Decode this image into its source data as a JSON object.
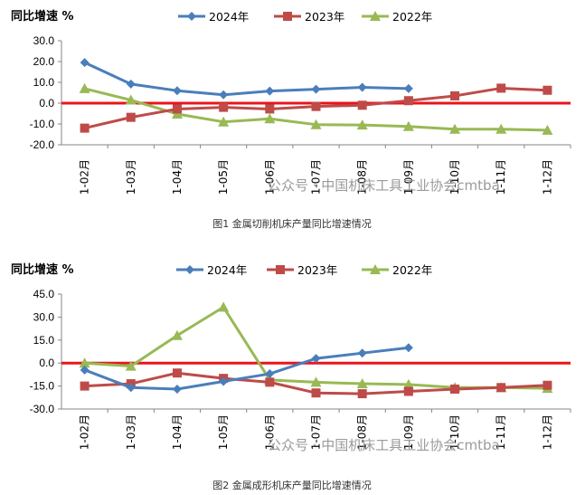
{
  "chart_data": [
    {
      "type": "line",
      "ylabel": "同比增速 %",
      "caption": "图1 金属切削机床产量同比增速情况",
      "categories": [
        "1-02月",
        "1-03月",
        "1-04月",
        "1-05月",
        "1-06月",
        "1-07月",
        "1-08月",
        "1-09月",
        "1-10月",
        "1-11月",
        "1-12月"
      ],
      "yticks": [
        "30.0",
        "20.0",
        "10.0",
        "0.0",
        "-10.0",
        "-20.0"
      ],
      "ylim": [
        -20,
        30
      ],
      "reference_line_y": 0,
      "legend_position": "top",
      "series": [
        {
          "name": "2024年",
          "color": "#4a7ebb",
          "marker": "diamond",
          "values": [
            19.5,
            9.2,
            6.0,
            4.0,
            5.8,
            6.7,
            7.6,
            7.0,
            null,
            null,
            null
          ]
        },
        {
          "name": "2023年",
          "color": "#be4b48",
          "marker": "square",
          "values": [
            -12.0,
            -6.8,
            -2.8,
            -2.0,
            -2.8,
            -1.6,
            -1.0,
            1.2,
            3.5,
            7.2,
            6.2
          ]
        },
        {
          "name": "2022年",
          "color": "#98b954",
          "marker": "triangle",
          "values": [
            7.0,
            1.5,
            -5.2,
            -9.0,
            -7.5,
            -10.3,
            -10.5,
            -11.2,
            -12.5,
            -12.5,
            -13.0
          ]
        }
      ]
    },
    {
      "type": "line",
      "ylabel": "同比增速 %",
      "caption": "图2 金属成形机床产量同比增速情况",
      "categories": [
        "1-02月",
        "1-03月",
        "1-04月",
        "1-05月",
        "1-06月",
        "1-07月",
        "1-08月",
        "1-09月",
        "1-10月",
        "1-11月",
        "1-12月"
      ],
      "yticks": [
        "45.0",
        "30.0",
        "15.0",
        "0.0",
        "-15.0",
        "-30.0"
      ],
      "ylim": [
        -30,
        45
      ],
      "reference_line_y": 0,
      "legend_position": "top",
      "series": [
        {
          "name": "2024年",
          "color": "#4a7ebb",
          "marker": "diamond",
          "values": [
            -4.5,
            -16.0,
            -17.0,
            -12.0,
            -7.0,
            3.0,
            6.5,
            10.0,
            null,
            null,
            null
          ]
        },
        {
          "name": "2023年",
          "color": "#be4b48",
          "marker": "square",
          "values": [
            -15.0,
            -13.5,
            -6.5,
            -10.0,
            -12.5,
            -19.5,
            -20.0,
            -18.5,
            -17.0,
            -16.0,
            -14.5
          ]
        },
        {
          "name": "2022年",
          "color": "#98b954",
          "marker": "triangle",
          "values": [
            0.0,
            -2.0,
            18.0,
            36.5,
            -11.0,
            -12.5,
            -13.5,
            -14.0,
            -16.0,
            -16.0,
            -16.5
          ]
        }
      ]
    }
  ],
  "watermark": "公众号 · 中国机床工具工业协会cmtba"
}
